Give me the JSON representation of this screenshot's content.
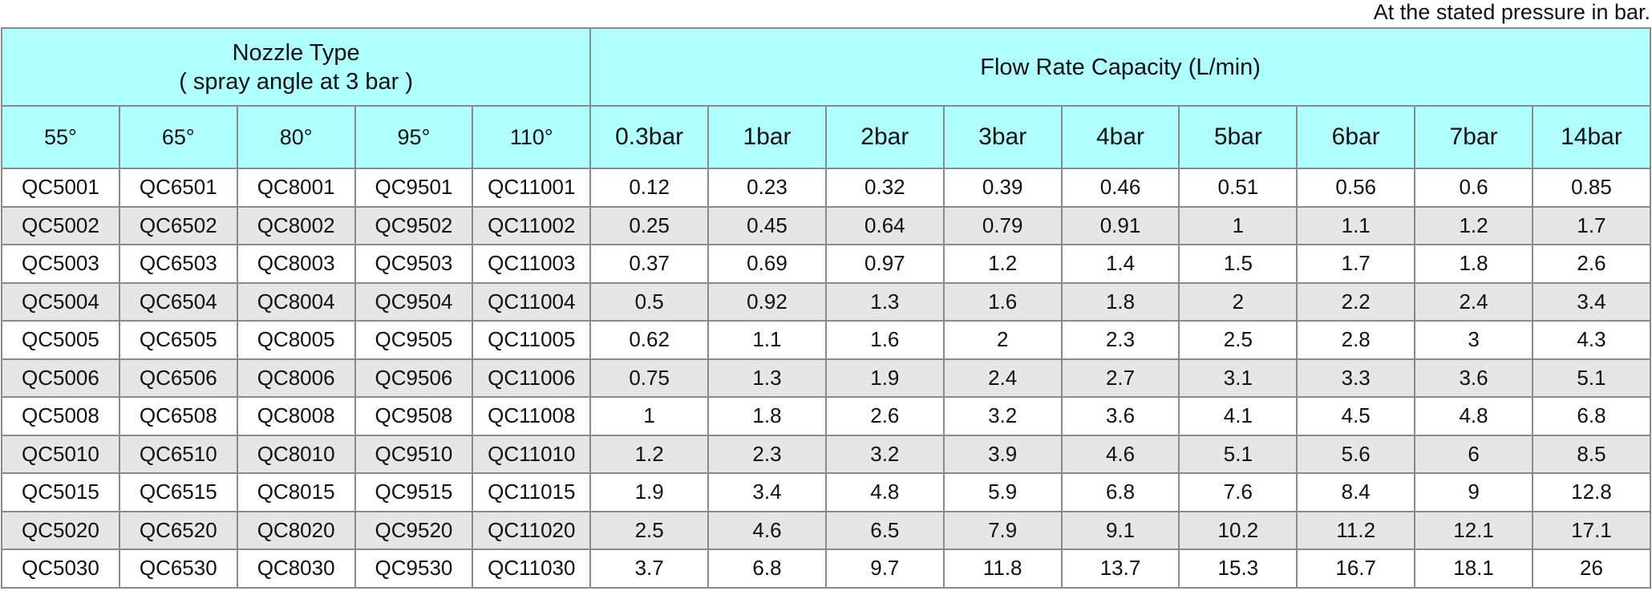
{
  "note": "At the stated pressure in bar.",
  "table": {
    "groups": [
      {
        "title": "Nozzle Type",
        "subtitle": "( spray angle at 3 bar )"
      },
      {
        "title": "Flow Rate Capacity (L/min)"
      }
    ],
    "columns": [
      "55°",
      "65°",
      "80°",
      "95°",
      "110°",
      "0.3bar",
      "1bar",
      "2bar",
      "3bar",
      "4bar",
      "5bar",
      "6bar",
      "7bar",
      "14bar"
    ],
    "rows": [
      [
        "QC5001",
        "QC6501",
        "QC8001",
        "QC9501",
        "QC11001",
        0.12,
        0.23,
        0.32,
        0.39,
        0.46,
        0.51,
        0.56,
        0.6,
        0.85
      ],
      [
        "QC5002",
        "QC6502",
        "QC8002",
        "QC9502",
        "QC11002",
        0.25,
        0.45,
        0.64,
        0.79,
        0.91,
        1,
        1.1,
        1.2,
        1.7
      ],
      [
        "QC5003",
        "QC6503",
        "QC8003",
        "QC9503",
        "QC11003",
        0.37,
        0.69,
        0.97,
        1.2,
        1.4,
        1.5,
        1.7,
        1.8,
        2.6
      ],
      [
        "QC5004",
        "QC6504",
        "QC8004",
        "QC9504",
        "QC11004",
        0.5,
        0.92,
        1.3,
        1.6,
        1.8,
        2,
        2.2,
        2.4,
        3.4
      ],
      [
        "QC5005",
        "QC6505",
        "QC8005",
        "QC9505",
        "QC11005",
        0.62,
        1.1,
        1.6,
        2,
        2.3,
        2.5,
        2.8,
        3,
        4.3
      ],
      [
        "QC5006",
        "QC6506",
        "QC8006",
        "QC9506",
        "QC11006",
        0.75,
        1.3,
        1.9,
        2.4,
        2.7,
        3.1,
        3.3,
        3.6,
        5.1
      ],
      [
        "QC5008",
        "QC6508",
        "QC8008",
        "QC9508",
        "QC11008",
        1,
        1.8,
        2.6,
        3.2,
        3.6,
        4.1,
        4.5,
        4.8,
        6.8
      ],
      [
        "QC5010",
        "QC6510",
        "QC8010",
        "QC9510",
        "QC11010",
        1.2,
        2.3,
        3.2,
        3.9,
        4.6,
        5.1,
        5.6,
        6,
        8.5
      ],
      [
        "QC5015",
        "QC6515",
        "QC8015",
        "QC9515",
        "QC11015",
        1.9,
        3.4,
        4.8,
        5.9,
        6.8,
        7.6,
        8.4,
        9,
        12.8
      ],
      [
        "QC5020",
        "QC6520",
        "QC8020",
        "QC9520",
        "QC11020",
        2.5,
        4.6,
        6.5,
        7.9,
        9.1,
        10.2,
        11.2,
        12.1,
        17.1
      ],
      [
        "QC5030",
        "QC6530",
        "QC8030",
        "QC9530",
        "QC11030",
        3.7,
        6.8,
        9.7,
        11.8,
        13.7,
        15.3,
        16.7,
        18.1,
        26
      ]
    ]
  }
}
